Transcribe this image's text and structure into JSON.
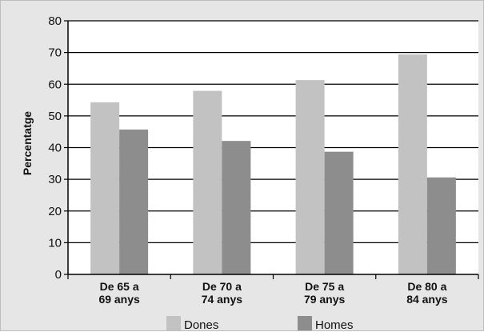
{
  "chart_data": {
    "type": "bar",
    "categories": [
      [
        "De 65 a",
        "69 anys"
      ],
      [
        "De 70 a",
        "74 anys"
      ],
      [
        "De 75 a",
        "79 anys"
      ],
      [
        "De 80 a",
        "84 anys"
      ]
    ],
    "series": [
      {
        "name": "Dones",
        "values": [
          54.3,
          57.9,
          61.3,
          69.4
        ],
        "color": "#c2c2c2"
      },
      {
        "name": "Homes",
        "values": [
          45.7,
          42.1,
          38.7,
          30.6
        ],
        "color": "#8d8d8d"
      }
    ],
    "xlabel": "",
    "ylabel": "Percentatge",
    "ylim": [
      0,
      80
    ],
    "yticks": [
      0,
      10,
      20,
      30,
      40,
      50,
      60,
      70,
      80
    ],
    "grid": true,
    "legend": "bottom",
    "plot_background": "#ffffff",
    "outer_background": "#e6e6e6"
  }
}
